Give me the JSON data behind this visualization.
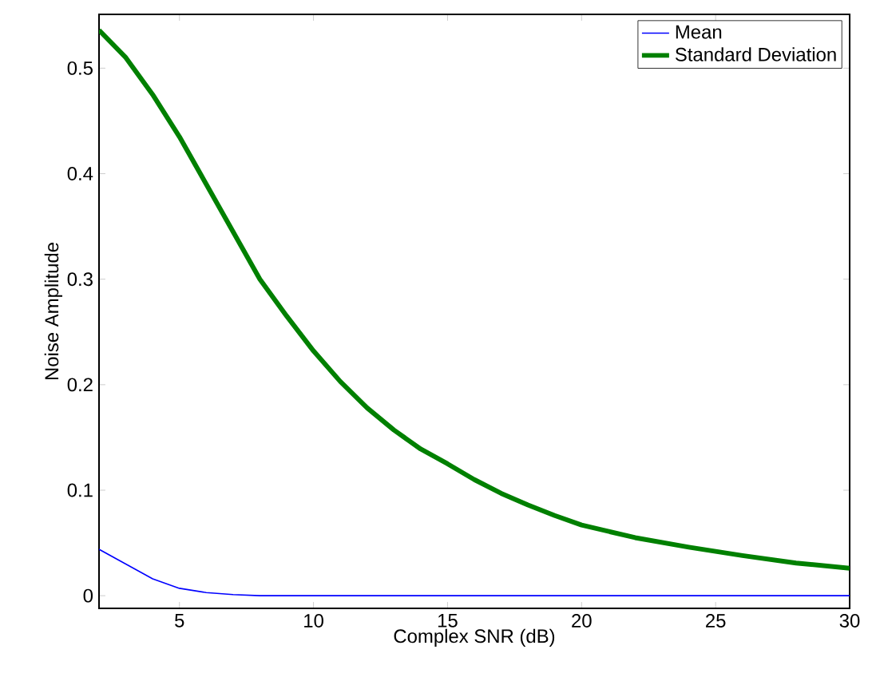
{
  "chart_data": {
    "type": "line",
    "xlabel": "Complex SNR (dB)",
    "ylabel": "Noise Amplitude",
    "xlim": [
      2,
      30
    ],
    "ylim": [
      -0.012,
      0.551
    ],
    "xticks": [
      5,
      10,
      15,
      20,
      25,
      30
    ],
    "yticks": [
      0,
      0.1,
      0.2,
      0.3,
      0.4,
      0.5
    ],
    "grid": false,
    "legend": "top right",
    "series": [
      {
        "name": "Mean",
        "color": "#0000ff",
        "x": [
          2,
          3,
          4,
          5,
          6,
          7,
          8,
          10,
          15,
          20,
          25,
          30
        ],
        "values": [
          0.044,
          0.03,
          0.016,
          0.007,
          0.003,
          0.001,
          0,
          0,
          0,
          0,
          0,
          0
        ]
      },
      {
        "name": "Standard Deviation",
        "color": "#008000",
        "x": [
          2,
          3,
          4,
          5,
          6,
          7,
          8,
          9,
          10,
          11,
          12,
          13,
          14,
          15,
          16,
          17,
          18,
          19,
          20,
          22,
          24,
          26,
          28,
          30
        ],
        "values": [
          0.536,
          0.51,
          0.475,
          0.435,
          0.39,
          0.345,
          0.3,
          0.265,
          0.232,
          0.203,
          0.178,
          0.157,
          0.139,
          0.125,
          0.11,
          0.097,
          0.086,
          0.076,
          0.067,
          0.055,
          0.046,
          0.038,
          0.031,
          0.026
        ]
      }
    ]
  }
}
